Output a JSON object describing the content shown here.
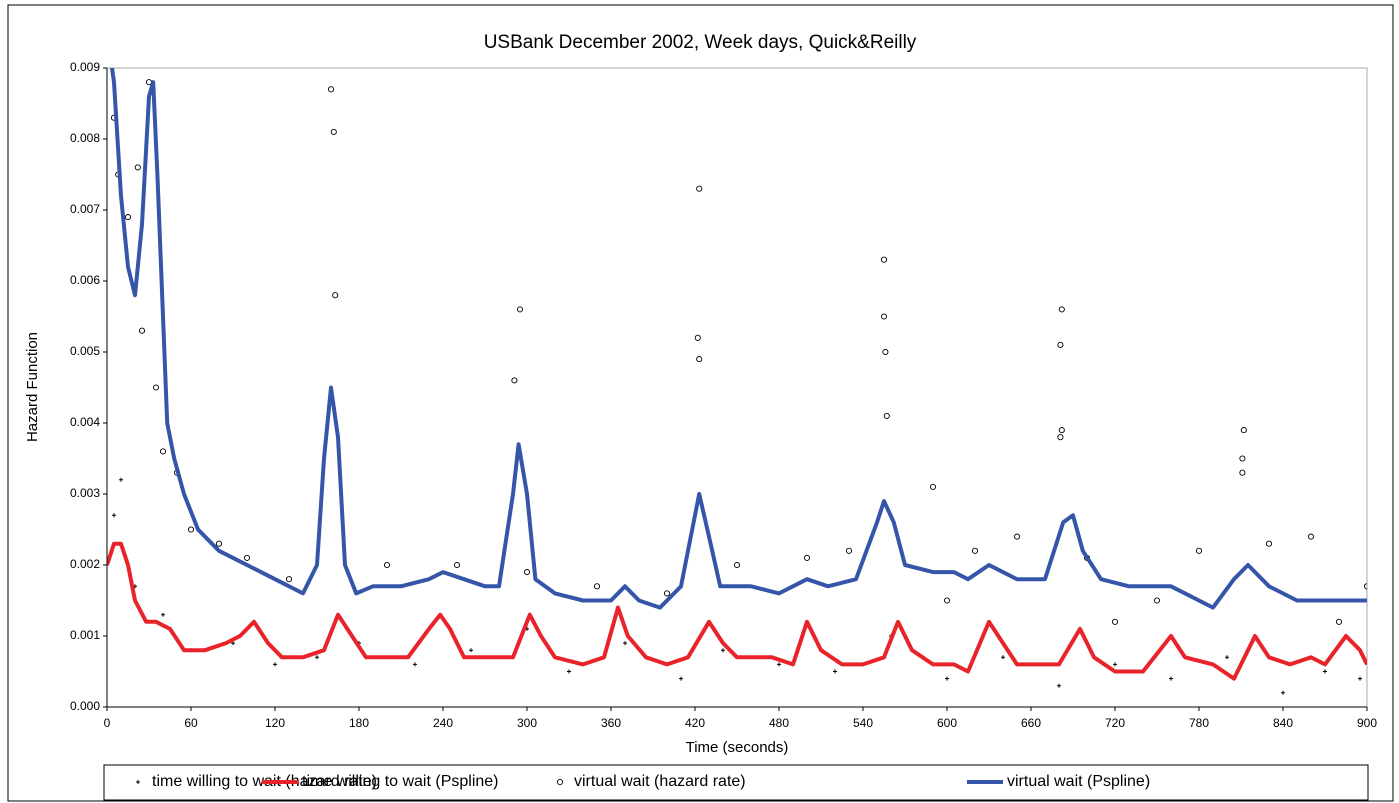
{
  "chart_data": {
    "type": "line",
    "title": "USBank December 2002, Week days, Quick&Reilly",
    "x_label": "Time (seconds)",
    "y_label": "Hazard Function",
    "xlim": [
      0,
      900
    ],
    "ylim": [
      0,
      0.009
    ],
    "xticks": [
      0,
      60,
      120,
      180,
      240,
      300,
      360,
      420,
      480,
      540,
      600,
      660,
      720,
      780,
      840,
      900
    ],
    "yticks": [
      {
        "value": 0,
        "label": "0.000"
      },
      0.001,
      0.002,
      0.003,
      0.004,
      0.005,
      0.006,
      0.007,
      0.008,
      0.009
    ],
    "series": [
      {
        "name": "time willing to wait (hazard rate)",
        "type": "scatter",
        "marker": "dot",
        "color": "#000000",
        "x": [
          5,
          10,
          20,
          40,
          60,
          90,
          120,
          150,
          180,
          220,
          260,
          300,
          330,
          370,
          410,
          440,
          480,
          520,
          560,
          600,
          640,
          680,
          720,
          760,
          800,
          840,
          870,
          895
        ],
        "values": [
          0.0027,
          0.0032,
          0.0017,
          0.0013,
          0.0008,
          0.0009,
          0.0006,
          0.0007,
          0.0009,
          0.0006,
          0.0008,
          0.0011,
          0.0005,
          0.0009,
          0.0004,
          0.0008,
          0.0006,
          0.0005,
          0.001,
          0.0004,
          0.0007,
          0.0003,
          0.0006,
          0.0004,
          0.0007,
          0.0002,
          0.0005,
          0.0004
        ]
      },
      {
        "name": "time willing to wait (Pspline)",
        "type": "line",
        "color": "#e8232a",
        "x": [
          0,
          5,
          10,
          15,
          20,
          28,
          35,
          45,
          55,
          70,
          85,
          95,
          105,
          115,
          125,
          140,
          155,
          165,
          175,
          185,
          200,
          215,
          230,
          238,
          245,
          255,
          270,
          290,
          302,
          310,
          320,
          340,
          355,
          365,
          372,
          385,
          400,
          415,
          430,
          440,
          450,
          475,
          490,
          500,
          510,
          525,
          540,
          555,
          565,
          575,
          590,
          605,
          615,
          630,
          640,
          650,
          680,
          695,
          705,
          720,
          740,
          760,
          770,
          790,
          805,
          820,
          830,
          845,
          860,
          870,
          885,
          895,
          900
        ],
        "values": [
          0.002,
          0.0023,
          0.0023,
          0.002,
          0.0015,
          0.0012,
          0.0012,
          0.0011,
          0.0008,
          0.0008,
          0.0009,
          0.001,
          0.0012,
          0.0009,
          0.0007,
          0.0007,
          0.0008,
          0.0013,
          0.001,
          0.0007,
          0.0007,
          0.0007,
          0.0011,
          0.0013,
          0.0011,
          0.0007,
          0.0007,
          0.0007,
          0.0013,
          0.001,
          0.0007,
          0.0006,
          0.0007,
          0.0014,
          0.001,
          0.0007,
          0.0006,
          0.0007,
          0.0012,
          0.0009,
          0.0007,
          0.0007,
          0.0006,
          0.0012,
          0.0008,
          0.0006,
          0.0006,
          0.0007,
          0.0012,
          0.0008,
          0.0006,
          0.0006,
          0.0005,
          0.0012,
          0.0009,
          0.0006,
          0.0006,
          0.0011,
          0.0007,
          0.0005,
          0.0005,
          0.001,
          0.0007,
          0.0006,
          0.0004,
          0.001,
          0.0007,
          0.0006,
          0.0007,
          0.0006,
          0.001,
          0.0008,
          0.0006
        ]
      },
      {
        "name": "virtual wait (hazard rate)",
        "type": "scatter",
        "marker": "circle",
        "color": "#000000",
        "x": [
          160,
          162,
          163,
          291,
          295,
          423,
          422,
          423,
          555,
          555,
          556,
          557,
          682,
          681,
          681,
          682,
          812,
          811,
          811,
          30,
          5,
          8,
          15,
          22,
          25,
          35,
          40,
          50,
          60,
          80,
          100,
          130,
          200,
          250,
          300,
          350,
          400,
          450,
          500,
          530,
          590,
          620,
          650,
          700,
          750,
          780,
          830,
          860,
          880,
          900,
          600,
          720
        ],
        "values": [
          0.0087,
          0.0081,
          0.0058,
          0.0046,
          0.0056,
          0.0073,
          0.0052,
          0.0049,
          0.0063,
          0.0055,
          0.005,
          0.0041,
          0.0056,
          0.0051,
          0.0038,
          0.0039,
          0.0039,
          0.0035,
          0.0033,
          0.0088,
          0.0083,
          0.0075,
          0.0069,
          0.0076,
          0.0053,
          0.0045,
          0.0036,
          0.0033,
          0.0025,
          0.0023,
          0.0021,
          0.0018,
          0.002,
          0.002,
          0.0019,
          0.0017,
          0.0016,
          0.002,
          0.0021,
          0.0022,
          0.0031,
          0.0022,
          0.0024,
          0.0021,
          0.0015,
          0.0022,
          0.0023,
          0.0024,
          0.0012,
          0.0017,
          0.0015,
          0.0012
        ]
      },
      {
        "name": "virtual wait (Pspline)",
        "type": "line",
        "color": "#3556a8",
        "x": [
          0,
          5,
          10,
          15,
          20,
          25,
          30,
          33,
          36,
          40,
          43,
          48,
          55,
          65,
          80,
          100,
          120,
          140,
          150,
          155,
          160,
          165,
          170,
          178,
          190,
          210,
          230,
          240,
          255,
          270,
          280,
          290,
          294,
          300,
          306,
          320,
          340,
          360,
          370,
          380,
          395,
          410,
          418,
          423,
          430,
          438,
          460,
          480,
          500,
          515,
          535,
          550,
          555,
          562,
          570,
          590,
          605,
          615,
          630,
          650,
          670,
          683,
          690,
          697,
          710,
          730,
          760,
          780,
          790,
          805,
          815,
          830,
          850,
          870,
          890,
          900
        ],
        "values": [
          0.0095,
          0.0088,
          0.0072,
          0.0062,
          0.0058,
          0.0068,
          0.0086,
          0.0088,
          0.0075,
          0.0055,
          0.004,
          0.0035,
          0.003,
          0.0025,
          0.0022,
          0.002,
          0.0018,
          0.0016,
          0.002,
          0.0035,
          0.0045,
          0.0038,
          0.002,
          0.0016,
          0.0017,
          0.0017,
          0.0018,
          0.0019,
          0.0018,
          0.0017,
          0.0017,
          0.003,
          0.0037,
          0.003,
          0.0018,
          0.0016,
          0.0015,
          0.0015,
          0.0017,
          0.0015,
          0.0014,
          0.0017,
          0.0025,
          0.003,
          0.0024,
          0.0017,
          0.0017,
          0.0016,
          0.0018,
          0.0017,
          0.0018,
          0.0026,
          0.0029,
          0.0026,
          0.002,
          0.0019,
          0.0019,
          0.0018,
          0.002,
          0.0018,
          0.0018,
          0.0026,
          0.0027,
          0.0022,
          0.0018,
          0.0017,
          0.0017,
          0.0015,
          0.0014,
          0.0018,
          0.002,
          0.0017,
          0.0015,
          0.0015,
          0.0015,
          0.0015
        ]
      }
    ],
    "legend": "bottom"
  }
}
